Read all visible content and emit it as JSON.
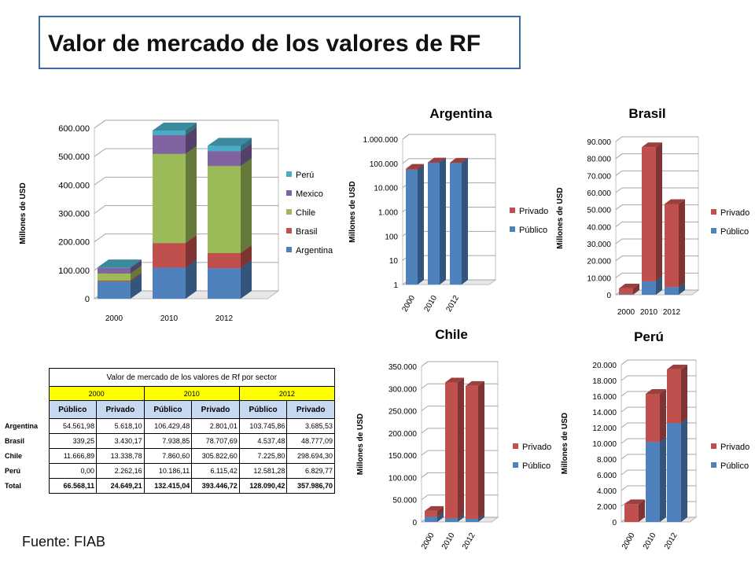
{
  "title": "Valor de mercado de los valores de RF",
  "source": "Fuente: FIAB",
  "colors": {
    "publico": "#4f81bd",
    "privado": "#c0504d",
    "chile": "#9bbb59",
    "mexico": "#8064a2",
    "peru": "#4bacc6",
    "title_border": "#3c6aa4",
    "table_year": "#ffff00",
    "table_header": "#c6d9f1"
  },
  "table": {
    "caption": "Valor de mercado de los valores de Rf por sector",
    "years": [
      "2000",
      "2010",
      "2012"
    ],
    "subheaders": [
      "Público",
      "Privado",
      "Público",
      "Privado",
      "Público",
      "Privado"
    ],
    "rows": [
      {
        "label": "Argentina",
        "values": [
          "54.561,98",
          "5.618,10",
          "106.429,48",
          "2.801,01",
          "103.745,86",
          "3.685,53"
        ]
      },
      {
        "label": "Brasil",
        "values": [
          "339,25",
          "3.430,17",
          "7.938,85",
          "78.707,69",
          "4.537,48",
          "48.777,09"
        ]
      },
      {
        "label": "Chile",
        "values": [
          "11.666,89",
          "13.338,78",
          "7.860,60",
          "305.822,60",
          "7.225,80",
          "298.694,30"
        ]
      },
      {
        "label": "Perú",
        "values": [
          "0,00",
          "2.262,16",
          "10.186,11",
          "6.115,42",
          "12.581,28",
          "6.829,77"
        ]
      },
      {
        "label": "Total",
        "values": [
          "66.568,11",
          "24.649,21",
          "132.415,04",
          "393.446,72",
          "128.090,42",
          "357.986,70"
        ]
      }
    ]
  },
  "chart_data": [
    {
      "type": "bar",
      "stacked": true,
      "categories": [
        "2000",
        "2010",
        "2012"
      ],
      "ylabel": "Millones de USD",
      "ylim": [
        0,
        600000
      ],
      "yticks": [
        "0",
        "100.000",
        "200.000",
        "300.000",
        "400.000",
        "500.000",
        "600.000"
      ],
      "series": [
        {
          "name": "Argentina",
          "color": "#4f81bd",
          "values": [
            60180,
            109230,
            107431
          ]
        },
        {
          "name": "Brasil",
          "color": "#c0504d",
          "values": [
            3769,
            86647,
            53315
          ]
        },
        {
          "name": "Chile",
          "color": "#9bbb59",
          "values": [
            25006,
            313683,
            305920
          ]
        },
        {
          "name": "Mexico",
          "color": "#8064a2",
          "values": [
            19000,
            66000,
            52000
          ]
        },
        {
          "name": "Perú",
          "color": "#4bacc6",
          "values": [
            2262,
            16302,
            19411
          ]
        }
      ],
      "legend": "right"
    },
    {
      "type": "bar",
      "stacked": true,
      "title": "Argentina",
      "yscale": "log",
      "categories": [
        "2000",
        "2010",
        "2012"
      ],
      "ylabel": "Millones de USD",
      "ylim": [
        1,
        1000000
      ],
      "yticks": [
        "1",
        "10",
        "100",
        "1.000",
        "10.000",
        "100.000",
        "1.000.000"
      ],
      "series": [
        {
          "name": "Público",
          "color": "#4f81bd",
          "values": [
            54561.98,
            106429.48,
            103745.86
          ]
        },
        {
          "name": "Privado",
          "color": "#c0504d",
          "values": [
            5618.1,
            2801.01,
            3685.53
          ]
        }
      ],
      "legend": "right"
    },
    {
      "type": "bar",
      "stacked": true,
      "title": "Brasil",
      "categories": [
        "2000",
        "2010",
        "2012"
      ],
      "ylabel": "Millones de USD",
      "ylim": [
        0,
        90000
      ],
      "yticks": [
        "0",
        "10.000",
        "20.000",
        "30.000",
        "40.000",
        "50.000",
        "60.000",
        "70.000",
        "80.000",
        "90.000"
      ],
      "series": [
        {
          "name": "Público",
          "color": "#4f81bd",
          "values": [
            339.25,
            7938.85,
            4537.48
          ]
        },
        {
          "name": "Privado",
          "color": "#c0504d",
          "values": [
            3430.17,
            78707.69,
            48777.09
          ]
        }
      ],
      "legend": "right"
    },
    {
      "type": "bar",
      "stacked": true,
      "title": "Chile",
      "categories": [
        "2000",
        "2010",
        "2012"
      ],
      "ylabel": "Millones de USD",
      "ylim": [
        0,
        350000
      ],
      "yticks": [
        "0",
        "50.000",
        "100.000",
        "150.000",
        "200.000",
        "250.000",
        "300.000",
        "350.000"
      ],
      "series": [
        {
          "name": "Público",
          "color": "#4f81bd",
          "values": [
            11666.89,
            7860.6,
            7225.8
          ]
        },
        {
          "name": "Privado",
          "color": "#c0504d",
          "values": [
            13338.78,
            305822.6,
            298694.3
          ]
        }
      ],
      "legend": "right"
    },
    {
      "type": "bar",
      "stacked": true,
      "title": "Perú",
      "categories": [
        "2000",
        "2010",
        "2012"
      ],
      "ylabel": "Millones de USD",
      "ylim": [
        0,
        20000
      ],
      "yticks": [
        "0",
        "2.000",
        "4.000",
        "6.000",
        "8.000",
        "10.000",
        "12.000",
        "14.000",
        "16.000",
        "18.000",
        "20.000"
      ],
      "series": [
        {
          "name": "Público",
          "color": "#4f81bd",
          "values": [
            0,
            10186.11,
            12581.28
          ]
        },
        {
          "name": "Privado",
          "color": "#c0504d",
          "values": [
            2262.16,
            6115.42,
            6829.77
          ]
        }
      ],
      "legend": "right"
    }
  ]
}
